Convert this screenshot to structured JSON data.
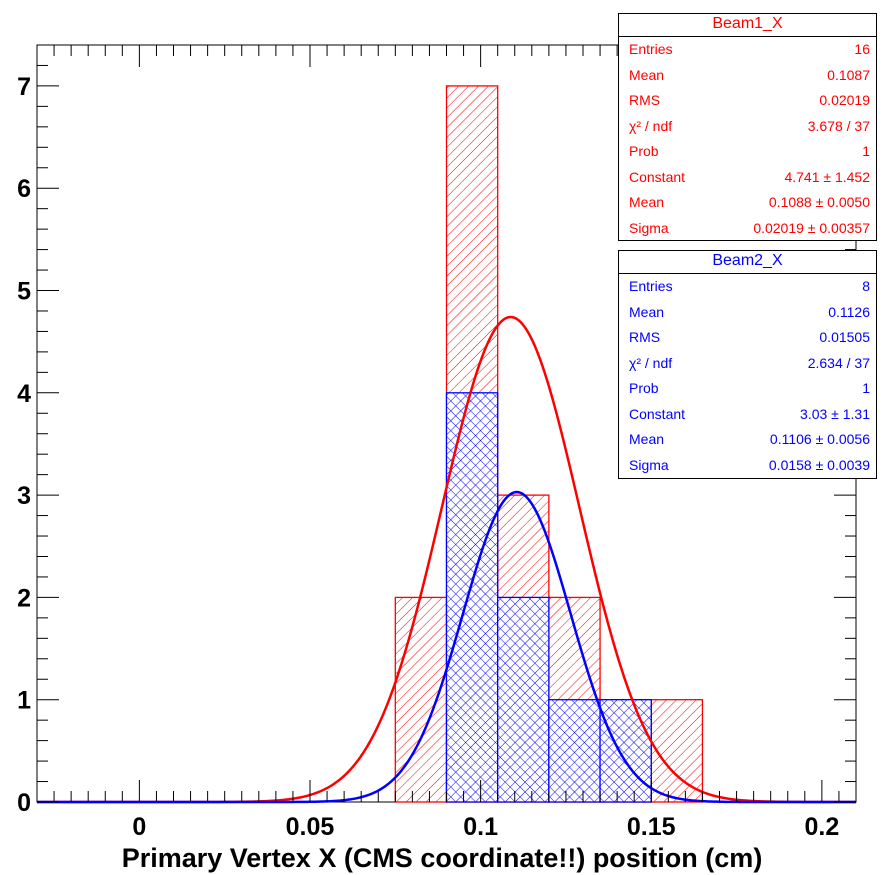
{
  "chart_data": {
    "type": "bar",
    "xlabel": "Primary Vertex X (CMS coordinate!!) position (cm)",
    "ylabel": "",
    "xlim": [
      -0.03,
      0.21
    ],
    "ylim": [
      0,
      7.4
    ],
    "xticks": [
      "0",
      "0.05",
      "0.1",
      "0.15",
      "0.2"
    ],
    "yticks": [
      "0",
      "1",
      "2",
      "3",
      "4",
      "5",
      "6",
      "7"
    ],
    "bin_width": 0.015,
    "series": [
      {
        "name": "Beam1_X",
        "color": "#ff0000",
        "bins": [
          {
            "x0": 0.075,
            "x1": 0.09,
            "value": 2
          },
          {
            "x0": 0.09,
            "x1": 0.105,
            "value": 7
          },
          {
            "x0": 0.105,
            "x1": 0.12,
            "value": 3
          },
          {
            "x0": 0.12,
            "x1": 0.135,
            "value": 2
          },
          {
            "x0": 0.135,
            "x1": 0.15,
            "value": 1
          },
          {
            "x0": 0.15,
            "x1": 0.165,
            "value": 1
          }
        ],
        "fit": {
          "constant": 4.741,
          "mean": 0.1088,
          "sigma": 0.02019
        }
      },
      {
        "name": "Beam2_X",
        "color": "#0000ff",
        "bins": [
          {
            "x0": 0.09,
            "x1": 0.105,
            "value": 4
          },
          {
            "x0": 0.105,
            "x1": 0.12,
            "value": 2
          },
          {
            "x0": 0.12,
            "x1": 0.135,
            "value": 1
          },
          {
            "x0": 0.135,
            "x1": 0.15,
            "value": 1
          }
        ],
        "fit": {
          "constant": 3.03,
          "mean": 0.1106,
          "sigma": 0.0158
        }
      }
    ]
  },
  "stats": [
    {
      "title": "Beam1_X",
      "rows": [
        {
          "label": "Entries",
          "value": "16"
        },
        {
          "label": "Mean",
          "value": "0.1087"
        },
        {
          "label": "RMS",
          "value": "0.02019"
        },
        {
          "label": "χ² / ndf",
          "value": "3.678 / 37"
        },
        {
          "label": "Prob",
          "value": "1"
        },
        {
          "label": "Constant",
          "value": "4.741 ± 1.452"
        },
        {
          "label": "Mean",
          "value": "0.1088 ± 0.0050"
        },
        {
          "label": "Sigma",
          "value": "0.02019 ± 0.00357"
        }
      ]
    },
    {
      "title": "Beam2_X",
      "rows": [
        {
          "label": "Entries",
          "value": "8"
        },
        {
          "label": "Mean",
          "value": "0.1126"
        },
        {
          "label": "RMS",
          "value": "0.01505"
        },
        {
          "label": "χ² / ndf",
          "value": "2.634 / 37"
        },
        {
          "label": "Prob",
          "value": "1"
        },
        {
          "label": "Constant",
          "value": "3.03 ± 1.31"
        },
        {
          "label": "Mean",
          "value": "0.1106 ± 0.0056"
        },
        {
          "label": "Sigma",
          "value": "0.0158 ± 0.0039"
        }
      ]
    }
  ]
}
